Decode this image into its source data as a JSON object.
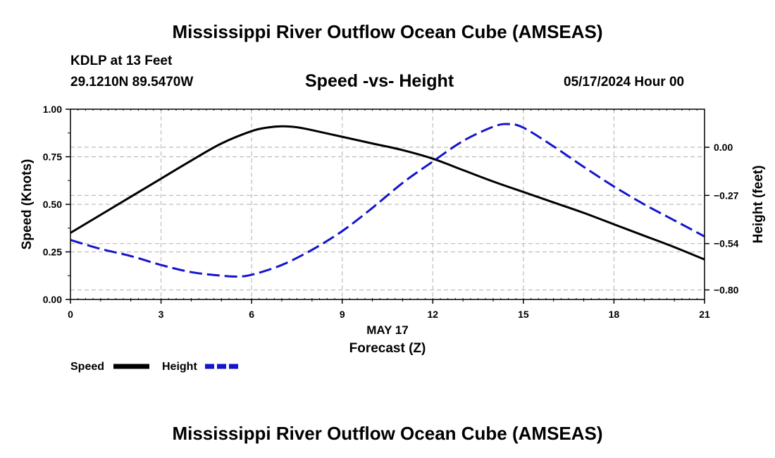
{
  "page": {
    "title_top": "Mississippi River Outflow Ocean Cube (AMSEAS)",
    "title_bottom": "Mississippi River Outflow Ocean Cube (AMSEAS)",
    "station": "KDLP at 13 Feet",
    "coords": "29.1210N  89.5470W",
    "datetime": "05/17/2024 Hour 00"
  },
  "chart_data": {
    "type": "line",
    "title": "Speed -vs- Height",
    "date_label": "MAY 17",
    "xlabel": "Forecast (Z)",
    "ylabel": "Speed (Knots)",
    "ylabel_right": "Height (feet)",
    "xlim": [
      0,
      21
    ],
    "ylim": [
      0,
      1.0
    ],
    "ylim_right": [
      -0.8534,
      0.2134
    ],
    "x_ticks": [
      0,
      3,
      6,
      9,
      12,
      15,
      18,
      21
    ],
    "x_tick_labels": [
      "0",
      "3",
      "6",
      "9",
      "12",
      "15",
      "18",
      "21"
    ],
    "y_ticks": [
      0,
      0.25,
      0.5,
      0.75,
      1.0
    ],
    "y_tick_labels": [
      "0.00",
      "0.25",
      "0.50",
      "0.75",
      "1.00"
    ],
    "y_ticks_right": [
      0.0,
      -0.27,
      -0.54,
      -0.8
    ],
    "y_tick_labels_right": [
      "0.00",
      "−0.27",
      "−0.54",
      "−0.80"
    ],
    "grid": true,
    "legend": [
      {
        "name": "Speed",
        "color": "#000000",
        "style": "solid"
      },
      {
        "name": "Height",
        "color": "#1515cc",
        "style": "dashed"
      }
    ],
    "series": [
      {
        "name": "Speed",
        "axis": "left",
        "color": "#000000",
        "x": [
          0,
          1,
          2,
          3,
          4,
          5,
          6,
          6.5,
          7,
          7.5,
          8,
          9,
          10,
          11,
          12,
          13,
          14,
          15,
          16,
          17,
          18,
          19,
          20,
          21
        ],
        "values": [
          0.35,
          0.445,
          0.54,
          0.635,
          0.73,
          0.82,
          0.885,
          0.903,
          0.91,
          0.905,
          0.89,
          0.855,
          0.82,
          0.785,
          0.74,
          0.68,
          0.62,
          0.565,
          0.51,
          0.455,
          0.395,
          0.335,
          0.275,
          0.21
        ]
      },
      {
        "name": "Height",
        "axis": "right",
        "color": "#1515cc",
        "x": [
          0,
          1,
          2,
          3,
          4,
          5,
          5.5,
          6,
          7,
          8,
          9,
          10,
          11,
          12,
          13,
          14,
          14.5,
          15,
          16,
          17,
          18,
          19,
          20,
          21
        ],
        "values": [
          -0.52,
          -0.57,
          -0.61,
          -0.66,
          -0.7,
          -0.72,
          -0.725,
          -0.715,
          -0.66,
          -0.575,
          -0.47,
          -0.34,
          -0.2,
          -0.08,
          0.035,
          0.115,
          0.13,
          0.11,
          0.005,
          -0.11,
          -0.22,
          -0.32,
          -0.41,
          -0.5
        ]
      }
    ]
  }
}
